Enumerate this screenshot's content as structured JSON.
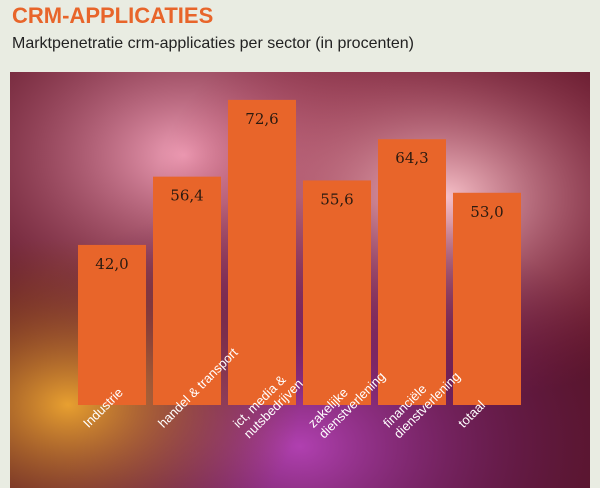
{
  "chart_data": {
    "type": "bar",
    "title": "CRM-APPLICATIES",
    "subtitle": "Marktpenetratie crm-applicaties per sector (in procenten)",
    "categories": [
      "Industrie",
      "handel & transport",
      "ict, media & nutsbedrijven",
      "zakelijke dienstverlening",
      "financiële dienstverlening",
      "totaal"
    ],
    "values": [
      42.0,
      56.4,
      72.6,
      55.6,
      64.3,
      53.0
    ],
    "value_labels": [
      "42,0",
      "56,4",
      "72,6",
      "55,6",
      "64,3",
      "53,0"
    ],
    "color": "#e8652a"
  }
}
